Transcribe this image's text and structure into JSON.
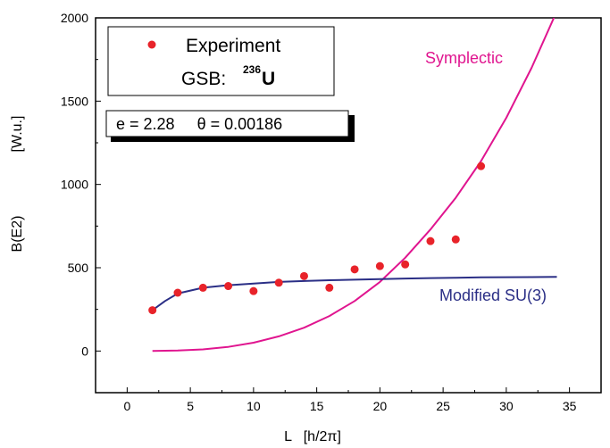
{
  "chart_data": {
    "type": "scatter",
    "xlabel": "L   [h/2π]",
    "ylabel_left": "B(E2)",
    "ylabel_right": "[W.u.]",
    "xlim": [
      -2.5,
      37.5
    ],
    "ylim": [
      -250,
      2000
    ],
    "xticks": [
      "0",
      "5",
      "10",
      "15",
      "20",
      "25",
      "30",
      "35"
    ],
    "yticks": [
      "0",
      "500",
      "1000",
      "1500",
      "2000"
    ],
    "legend": {
      "marker_label": "Experiment",
      "gsb_prefix": "GSB:",
      "mass_number": "236",
      "element": "U"
    },
    "parameters": "e = 2.28     θ = 0.00186",
    "colors": {
      "experiment": "#e8232a",
      "symplectic": "#e0158f",
      "modified_su3": "#2b2f86"
    },
    "series": [
      {
        "name": "Experiment",
        "style": "markers",
        "x": [
          2,
          4,
          6,
          8,
          10,
          12,
          14,
          16,
          18,
          20,
          22,
          24,
          26,
          28
        ],
        "y": [
          245,
          350,
          380,
          390,
          360,
          410,
          450,
          380,
          490,
          510,
          520,
          660,
          670,
          1110
        ]
      },
      {
        "name": "Symplectic",
        "style": "line",
        "x": [
          2,
          4,
          6,
          8,
          10,
          12,
          14,
          16,
          18,
          20,
          22,
          24,
          26,
          28,
          30,
          32,
          34
        ],
        "y": [
          0,
          3,
          10,
          25,
          50,
          88,
          140,
          210,
          300,
          415,
          560,
          730,
          920,
          1140,
          1400,
          1700,
          2040
        ]
      },
      {
        "name": "Modified SU(3)",
        "style": "line",
        "x": [
          2,
          3,
          4,
          6,
          8,
          10,
          12,
          14,
          16,
          18,
          20,
          22,
          24,
          26,
          28,
          30,
          32,
          34
        ],
        "y": [
          245,
          300,
          345,
          380,
          395,
          405,
          415,
          420,
          425,
          428,
          432,
          435,
          438,
          440,
          442,
          443,
          444,
          445
        ]
      }
    ]
  }
}
